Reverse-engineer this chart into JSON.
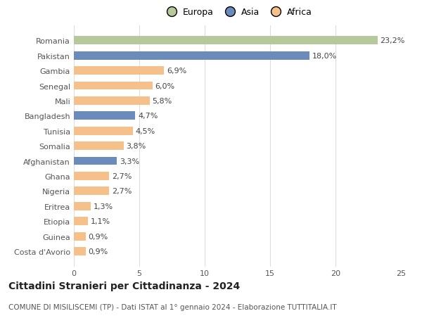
{
  "categories": [
    "Romania",
    "Pakistan",
    "Gambia",
    "Senegal",
    "Mali",
    "Bangladesh",
    "Tunisia",
    "Somalia",
    "Afghanistan",
    "Ghana",
    "Nigeria",
    "Eritrea",
    "Etiopia",
    "Guinea",
    "Costa d'Avorio"
  ],
  "values": [
    23.2,
    18.0,
    6.9,
    6.0,
    5.8,
    4.7,
    4.5,
    3.8,
    3.3,
    2.7,
    2.7,
    1.3,
    1.1,
    0.9,
    0.9
  ],
  "labels": [
    "23,2%",
    "18,0%",
    "6,9%",
    "6,0%",
    "5,8%",
    "4,7%",
    "4,5%",
    "3,8%",
    "3,3%",
    "2,7%",
    "2,7%",
    "1,3%",
    "1,1%",
    "0,9%",
    "0,9%"
  ],
  "colors": [
    "#b5c99a",
    "#6b8cba",
    "#f5c08a",
    "#f5c08a",
    "#f5c08a",
    "#6b8cba",
    "#f5c08a",
    "#f5c08a",
    "#6b8cba",
    "#f5c08a",
    "#f5c08a",
    "#f5c08a",
    "#f5c08a",
    "#f5c08a",
    "#f5c08a"
  ],
  "legend_labels": [
    "Europa",
    "Asia",
    "Africa"
  ],
  "legend_colors": [
    "#b5c99a",
    "#6b8cba",
    "#f5c08a"
  ],
  "title": "Cittadini Stranieri per Cittadinanza - 2024",
  "subtitle": "COMUNE DI MISILISCEMI (TP) - Dati ISTAT al 1° gennaio 2024 - Elaborazione TUTTITALIA.IT",
  "xlim": [
    0,
    25
  ],
  "xticks": [
    0,
    5,
    10,
    15,
    20,
    25
  ],
  "background_color": "#ffffff",
  "bar_height": 0.55,
  "grid_color": "#dddddd",
  "label_fontsize": 8,
  "tick_fontsize": 8,
  "title_fontsize": 10,
  "subtitle_fontsize": 7.5,
  "legend_fontsize": 9
}
